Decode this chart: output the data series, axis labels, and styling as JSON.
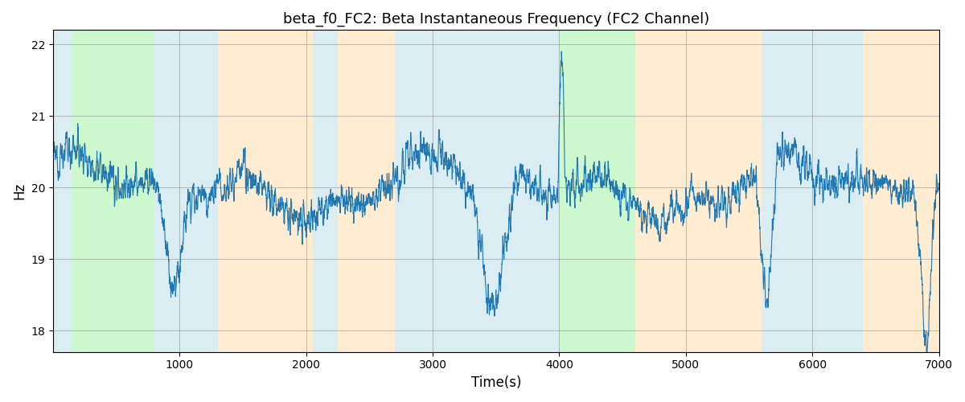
{
  "title": "beta_f0_FC2: Beta Instantaneous Frequency (FC2 Channel)",
  "xlabel": "Time(s)",
  "ylabel": "Hz",
  "xlim": [
    0,
    7000
  ],
  "ylim": [
    17.7,
    22.2
  ],
  "yticks": [
    18,
    19,
    20,
    21,
    22
  ],
  "xticks": [
    1000,
    2000,
    3000,
    4000,
    5000,
    6000,
    7000
  ],
  "line_color": "#1f77b4",
  "line_width": 0.8,
  "bg_regions": [
    {
      "start": 0,
      "end": 150,
      "color": "#add8e6",
      "alpha": 0.45
    },
    {
      "start": 150,
      "end": 800,
      "color": "#90ee90",
      "alpha": 0.45
    },
    {
      "start": 800,
      "end": 1300,
      "color": "#add8e6",
      "alpha": 0.45
    },
    {
      "start": 1300,
      "end": 2050,
      "color": "#ffd59a",
      "alpha": 0.45
    },
    {
      "start": 2050,
      "end": 2250,
      "color": "#add8e6",
      "alpha": 0.45
    },
    {
      "start": 2250,
      "end": 2700,
      "color": "#ffd59a",
      "alpha": 0.45
    },
    {
      "start": 2700,
      "end": 4000,
      "color": "#add8e6",
      "alpha": 0.45
    },
    {
      "start": 4000,
      "end": 4600,
      "color": "#90ee90",
      "alpha": 0.45
    },
    {
      "start": 4600,
      "end": 5600,
      "color": "#ffd59a",
      "alpha": 0.45
    },
    {
      "start": 5600,
      "end": 6400,
      "color": "#add8e6",
      "alpha": 0.45
    },
    {
      "start": 6400,
      "end": 7000,
      "color": "#ffd59a",
      "alpha": 0.45
    }
  ],
  "seed": 12345,
  "n_points": 6000
}
